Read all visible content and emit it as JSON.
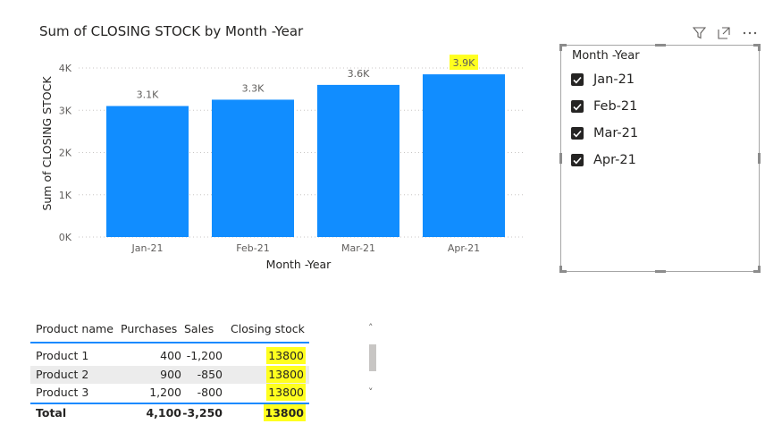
{
  "chart_data": {
    "type": "bar",
    "title": "Sum of CLOSING STOCK by Month -Year",
    "xlabel": "Month -Year",
    "ylabel": "Sum of CLOSING STOCK",
    "categories": [
      "Jan-21",
      "Feb-21",
      "Mar-21",
      "Apr-21"
    ],
    "values": [
      3100,
      3250,
      3600,
      3850
    ],
    "data_labels": [
      "3.1K",
      "3.3K",
      "3.6K",
      "3.9K"
    ],
    "highlighted_labels": [
      "3.9K"
    ],
    "ylim": [
      0,
      4000
    ],
    "yticks": [
      0,
      1000,
      2000,
      3000,
      4000
    ],
    "ytick_labels": [
      "0K",
      "1K",
      "2K",
      "3K",
      "4K"
    ],
    "grid": "dotted horizontal",
    "bar_color": "#118dff",
    "highlight_color": "#ffff1f"
  },
  "slicer": {
    "header": "Month -Year",
    "items": [
      {
        "label": "Jan-21",
        "checked": true
      },
      {
        "label": "Feb-21",
        "checked": true
      },
      {
        "label": "Mar-21",
        "checked": true
      },
      {
        "label": "Apr-21",
        "checked": true
      }
    ]
  },
  "visual_header_icons": [
    "filter-icon",
    "focus-mode-icon",
    "more-options-icon"
  ],
  "table": {
    "columns": [
      "Product name",
      "Purchases",
      "Sales",
      "Closing stock"
    ],
    "rows": [
      [
        "Product 1",
        "400",
        "-1,200",
        "13800"
      ],
      [
        "Product 2",
        "900",
        "-850",
        "13800"
      ],
      [
        "Product 3",
        "1,200",
        "-800",
        "13800"
      ]
    ],
    "total": [
      "Total",
      "4,100",
      "-3,250",
      "13800"
    ],
    "accent_color": "#1a8aff"
  },
  "scrollbar": {
    "up_glyph": "˄",
    "down_glyph": "˅"
  }
}
